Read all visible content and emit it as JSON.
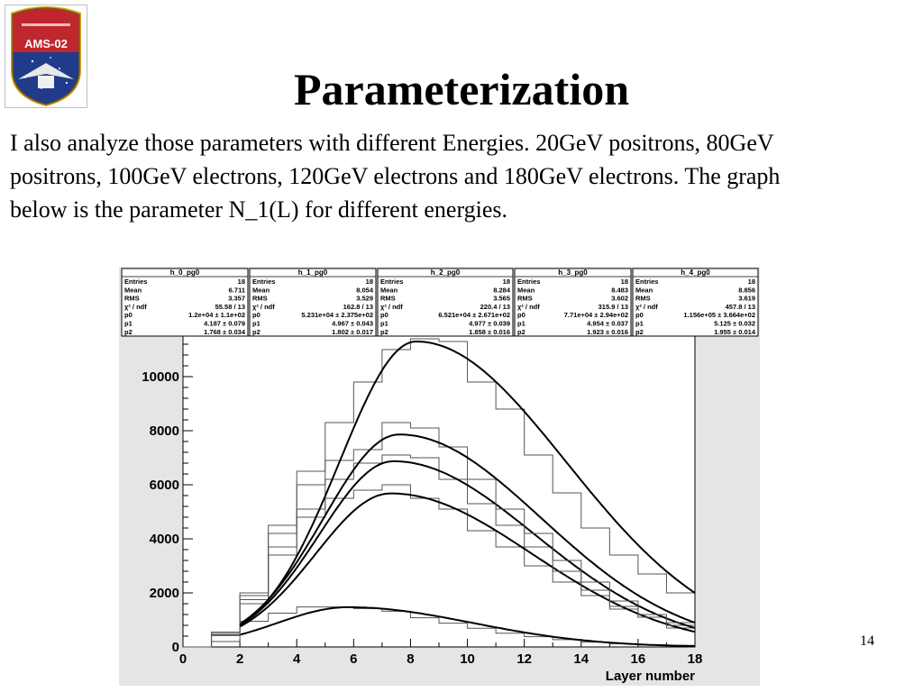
{
  "slide": {
    "title": "Parameterization",
    "body_lines": [
      "I also analyze those parameters with different Energies. 20GeV positrons, 80GeV",
      "positrons, 100GeV electrons, 120GeV electrons and 180GeV electrons. The graph",
      "below is the parameter N_1(L) for different energies."
    ],
    "page_number": "14"
  },
  "logo": {
    "text": "AMS-02",
    "colors": {
      "red": "#c0262d",
      "blue": "#1f3b8a",
      "gold": "#d8a41f"
    }
  },
  "chart_data": {
    "type": "line",
    "xlabel": "Layer number",
    "ylabel": "",
    "xlim": [
      0,
      18
    ],
    "ylim": [
      0,
      11500
    ],
    "xticks": [
      "0",
      "2",
      "4",
      "6",
      "8",
      "10",
      "12",
      "14",
      "16",
      "18"
    ],
    "yticks": [
      "0",
      "2000",
      "4000",
      "6000",
      "8000",
      "10000"
    ],
    "grid": false,
    "stat_boxes": [
      {
        "name": "h_0_pg0",
        "rows": [
          [
            "Entries",
            "18"
          ],
          [
            "Mean",
            "6.711"
          ],
          [
            "RMS",
            "3.357"
          ],
          [
            "χ² / ndf",
            "55.58 / 13"
          ],
          [
            "p0",
            "1.2e+04 ± 1.1e+02"
          ],
          [
            "p1",
            "4.187 ± 0.079"
          ],
          [
            "p2",
            "1.768 ± 0.034"
          ]
        ]
      },
      {
        "name": "h_1_pg0",
        "rows": [
          [
            "Entries",
            "18"
          ],
          [
            "Mean",
            "8.054"
          ],
          [
            "RMS",
            "3.529"
          ],
          [
            "χ² / ndf",
            "162.8 / 13"
          ],
          [
            "p0",
            "5.231e+04 ± 2.375e+02"
          ],
          [
            "p1",
            "4.967 ± 0.043"
          ],
          [
            "p2",
            "1.802 ± 0.017"
          ]
        ]
      },
      {
        "name": "h_2_pg0",
        "rows": [
          [
            "Entries",
            "18"
          ],
          [
            "Mean",
            "8.284"
          ],
          [
            "RMS",
            "3.565"
          ],
          [
            "χ² / ndf",
            "220.4 / 13"
          ],
          [
            "p0",
            "6.521e+04 ± 2.671e+02"
          ],
          [
            "p1",
            "4.977 ± 0.039"
          ],
          [
            "p2",
            "1.858 ± 0.016"
          ]
        ]
      },
      {
        "name": "h_3_pg0",
        "rows": [
          [
            "Entries",
            "18"
          ],
          [
            "Mean",
            "8.483"
          ],
          [
            "RMS",
            "3.602"
          ],
          [
            "χ² / ndf",
            "315.9 / 13"
          ],
          [
            "p0",
            "7.71e+04 ± 2.94e+02"
          ],
          [
            "p1",
            "4.954 ± 0.037"
          ],
          [
            "p2",
            "1.923 ± 0.016"
          ]
        ]
      },
      {
        "name": "h_4_pg0",
        "rows": [
          [
            "Entries",
            "18"
          ],
          [
            "Mean",
            "8.856"
          ],
          [
            "RMS",
            "3.619"
          ],
          [
            "χ² / ndf",
            "457.8 / 13"
          ],
          [
            "p0",
            "1.156e+05 ± 3.664e+02"
          ],
          [
            "p1",
            "5.125 ± 0.032"
          ],
          [
            "p2",
            "1.955 ± 0.014"
          ]
        ]
      }
    ],
    "x_bins": [
      0,
      1,
      2,
      3,
      4,
      5,
      6,
      7,
      8,
      9,
      10,
      11,
      12,
      13,
      14,
      15,
      16,
      17,
      18
    ],
    "series": [
      {
        "histogram": [
          0,
          200,
          950,
          1250,
          1480,
          1480,
          1420,
          1320,
          1080,
          880,
          690,
          510,
          380,
          270,
          180,
          120,
          80,
          60
        ],
        "fit": {
          "peak_x": 5.8,
          "peak_y": 1470,
          "start_x": 2,
          "start_y": 450,
          "end_y": 30
        }
      },
      {
        "histogram": [
          0,
          420,
          1600,
          3400,
          4800,
          5500,
          5800,
          6000,
          5500,
          5100,
          4300,
          3700,
          3000,
          2400,
          1900,
          1400,
          1100,
          700
        ],
        "fit": {
          "peak_x": 7.3,
          "peak_y": 5680,
          "start_x": 2,
          "start_y": 750,
          "end_y": 560
        }
      },
      {
        "histogram": [
          0,
          450,
          1750,
          3700,
          5100,
          6200,
          6800,
          7100,
          7000,
          6200,
          5300,
          4500,
          3700,
          2800,
          2100,
          1500,
          1100,
          800
        ],
        "fit": {
          "peak_x": 7.4,
          "peak_y": 6870,
          "start_x": 2,
          "start_y": 800,
          "end_y": 700
        }
      },
      {
        "histogram": [
          0,
          500,
          1900,
          4200,
          6000,
          6900,
          7300,
          8300,
          8100,
          7400,
          6200,
          5100,
          4200,
          3200,
          2400,
          1700,
          1200,
          900
        ],
        "fit": {
          "peak_x": 7.6,
          "peak_y": 7860,
          "start_x": 2,
          "start_y": 850,
          "end_y": 900
        }
      },
      {
        "histogram": [
          0,
          550,
          2000,
          4500,
          6500,
          8300,
          9800,
          11000,
          11400,
          11300,
          9800,
          8800,
          7100,
          5700,
          4400,
          3400,
          2700,
          2000
        ],
        "fit": {
          "peak_x": 8.2,
          "peak_y": 11300,
          "start_x": 2,
          "start_y": 800,
          "end_y": 2000
        }
      }
    ]
  }
}
